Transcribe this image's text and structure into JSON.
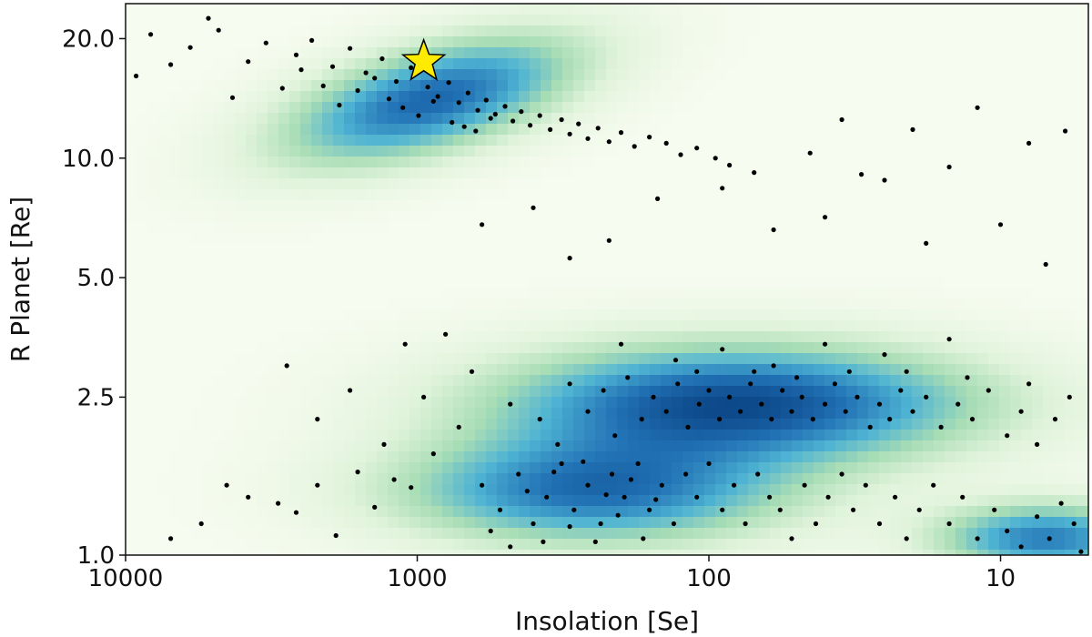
{
  "chart_data": {
    "type": "scatter",
    "title": "",
    "xlabel": "Insolation [Se]",
    "ylabel": "R Planet [Re]",
    "x_scale": "log",
    "y_scale": "log",
    "x_reversed": true,
    "xlim": [
      10000,
      5
    ],
    "ylim": [
      1.0,
      24.5
    ],
    "grid": false,
    "legend": "none",
    "x_ticks": [
      {
        "value": 10000,
        "label": "10000"
      },
      {
        "value": 1000,
        "label": "1000"
      },
      {
        "value": 100,
        "label": "100"
      },
      {
        "value": 10,
        "label": "10"
      }
    ],
    "y_ticks": [
      {
        "value": 1.0,
        "label": "1.0"
      },
      {
        "value": 2.5,
        "label": "2.5"
      },
      {
        "value": 5.0,
        "label": "5.0"
      },
      {
        "value": 10.0,
        "label": "10.0"
      },
      {
        "value": 20.0,
        "label": "20.0"
      }
    ],
    "background_density": {
      "colormap": "GnBu",
      "clusters": [
        {
          "insolation_center": 900,
          "radius_center": 14,
          "insolation_spread_dex": 0.34,
          "radius_spread_dex": 0.09,
          "tilt": -0.18,
          "strength": 0.85
        },
        {
          "insolation_center": 80,
          "radius_center": 2.4,
          "insolation_spread_dex": 0.55,
          "radius_spread_dex": 0.1,
          "tilt": 0.0,
          "strength": 1.0
        },
        {
          "insolation_center": 250,
          "radius_center": 1.45,
          "insolation_spread_dex": 0.45,
          "radius_spread_dex": 0.09,
          "tilt": 0.0,
          "strength": 0.8
        },
        {
          "insolation_center": 7,
          "radius_center": 1.1,
          "insolation_spread_dex": 0.25,
          "radius_spread_dex": 0.06,
          "tilt": 0.0,
          "strength": 0.75
        }
      ]
    },
    "series": [
      {
        "marker": "dot",
        "color": "#000000",
        "points": [
          [
            5200,
            22.5
          ],
          [
            4800,
            21.0
          ],
          [
            3300,
            19.5
          ],
          [
            2600,
            18.2
          ],
          [
            2300,
            19.8
          ],
          [
            1950,
            17.0
          ],
          [
            1700,
            18.9
          ],
          [
            1500,
            16.4
          ],
          [
            1320,
            17.8
          ],
          [
            1180,
            15.6
          ],
          [
            1050,
            16.9
          ],
          [
            920,
            15.1
          ],
          [
            850,
            14.3
          ],
          [
            780,
            15.5
          ],
          [
            720,
            13.8
          ],
          [
            670,
            14.6
          ],
          [
            620,
            13.2
          ],
          [
            580,
            14.0
          ],
          [
            540,
            12.9
          ],
          [
            500,
            13.5
          ],
          [
            470,
            12.4
          ],
          [
            440,
            13.1
          ],
          [
            410,
            12.1
          ],
          [
            380,
            12.8
          ],
          [
            350,
            11.8
          ],
          [
            320,
            12.5
          ],
          [
            300,
            11.5
          ],
          [
            280,
            12.2
          ],
          [
            260,
            11.2
          ],
          [
            240,
            11.9
          ],
          [
            220,
            11.0
          ],
          [
            200,
            11.6
          ],
          [
            180,
            10.7
          ],
          [
            160,
            11.3
          ],
          [
            140,
            10.9
          ],
          [
            125,
            10.2
          ],
          [
            110,
            10.6
          ],
          [
            95,
            10.0
          ],
          [
            85,
            9.6
          ],
          [
            70,
            9.2
          ],
          [
            1600,
            14.8
          ],
          [
            1400,
            15.9
          ],
          [
            1250,
            14.1
          ],
          [
            1120,
            13.4
          ],
          [
            990,
            12.8
          ],
          [
            880,
            13.9
          ],
          [
            760,
            12.3
          ],
          [
            690,
            12.0
          ],
          [
            630,
            11.7
          ],
          [
            560,
            12.6
          ],
          [
            2100,
            15.2
          ],
          [
            1850,
            13.6
          ],
          [
            2500,
            16.7
          ],
          [
            2900,
            15.0
          ],
          [
            3800,
            17.5
          ],
          [
            6000,
            19.0
          ],
          [
            7000,
            17.2
          ],
          [
            8200,
            20.5
          ],
          [
            9200,
            16.1
          ],
          [
            4300,
            14.2
          ],
          [
            600,
            6.8
          ],
          [
            400,
            7.5
          ],
          [
            300,
            5.6
          ],
          [
            220,
            6.2
          ],
          [
            150,
            7.9
          ],
          [
            90,
            8.4
          ],
          [
            60,
            6.6
          ],
          [
            40,
            7.1
          ],
          [
            25,
            8.8
          ],
          [
            15,
            9.5
          ],
          [
            35,
            12.5
          ],
          [
            20,
            11.8
          ],
          [
            12,
            13.4
          ],
          [
            8,
            10.9
          ],
          [
            6,
            11.7
          ],
          [
            45,
            10.3
          ],
          [
            30,
            9.1
          ],
          [
            18,
            6.1
          ],
          [
            10,
            6.8
          ],
          [
            7,
            5.4
          ],
          [
            800,
            3.6
          ],
          [
            650,
            2.9
          ],
          [
            480,
            2.4
          ],
          [
            380,
            2.2
          ],
          [
            330,
            1.9
          ],
          [
            300,
            2.7
          ],
          [
            260,
            2.3
          ],
          [
            230,
            2.6
          ],
          [
            210,
            2.0
          ],
          [
            190,
            2.8
          ],
          [
            170,
            2.2
          ],
          [
            155,
            2.5
          ],
          [
            140,
            2.3
          ],
          [
            128,
            2.7
          ],
          [
            118,
            2.1
          ],
          [
            108,
            2.4
          ],
          [
            100,
            2.6
          ],
          [
            92,
            2.2
          ],
          [
            85,
            2.5
          ],
          [
            78,
            2.3
          ],
          [
            72,
            2.7
          ],
          [
            66,
            2.4
          ],
          [
            61,
            2.2
          ],
          [
            56,
            2.6
          ],
          [
            52,
            2.3
          ],
          [
            48,
            2.5
          ],
          [
            44,
            2.2
          ],
          [
            40,
            2.4
          ],
          [
            37,
            2.7
          ],
          [
            34,
            2.3
          ],
          [
            31,
            2.5
          ],
          [
            28,
            2.1
          ],
          [
            26,
            2.4
          ],
          [
            24,
            2.2
          ],
          [
            22,
            2.6
          ],
          [
            20,
            2.3
          ],
          [
            18,
            2.5
          ],
          [
            16,
            2.1
          ],
          [
            14,
            2.4
          ],
          [
            12.5,
            2.2
          ],
          [
            11,
            2.6
          ],
          [
            9.5,
            2.0
          ],
          [
            8.5,
            2.3
          ],
          [
            7.5,
            1.9
          ],
          [
            6.5,
            2.2
          ],
          [
            5.8,
            2.5
          ],
          [
            130,
            3.1
          ],
          [
            90,
            3.3
          ],
          [
            60,
            3.0
          ],
          [
            40,
            3.4
          ],
          [
            25,
            3.2
          ],
          [
            15,
            3.5
          ],
          [
            200,
            3.4
          ],
          [
            110,
            2.9
          ],
          [
            70,
            2.9
          ],
          [
            50,
            2.8
          ],
          [
            33,
            2.9
          ],
          [
            21,
            2.9
          ],
          [
            13,
            2.8
          ],
          [
            8,
            2.7
          ],
          [
            600,
            1.5
          ],
          [
            520,
            1.3
          ],
          [
            450,
            1.6
          ],
          [
            400,
            1.2
          ],
          [
            360,
            1.4
          ],
          [
            320,
            1.7
          ],
          [
            290,
            1.3
          ],
          [
            260,
            1.5
          ],
          [
            235,
            1.2
          ],
          [
            215,
            1.6
          ],
          [
            195,
            1.4
          ],
          [
            175,
            1.7
          ],
          [
            160,
            1.3
          ],
          [
            145,
            1.5
          ],
          [
            132,
            1.2
          ],
          [
            120,
            1.6
          ],
          [
            110,
            1.4
          ],
          [
            100,
            1.7
          ],
          [
            90,
            1.3
          ],
          [
            82,
            1.5
          ],
          [
            75,
            1.2
          ],
          [
            68,
            1.6
          ],
          [
            62,
            1.4
          ],
          [
            57,
            1.3
          ],
          [
            52,
            1.1
          ],
          [
            47,
            1.5
          ],
          [
            43,
            1.2
          ],
          [
            39,
            1.4
          ],
          [
            35,
            1.6
          ],
          [
            32,
            1.3
          ],
          [
            29,
            1.5
          ],
          [
            26,
            1.2
          ],
          [
            23,
            1.4
          ],
          [
            21,
            1.1
          ],
          [
            19,
            1.3
          ],
          [
            17,
            1.5
          ],
          [
            15,
            1.2
          ],
          [
            13.5,
            1.4
          ],
          [
            12,
            1.1
          ],
          [
            10.5,
            1.3
          ],
          [
            9.5,
            1.15
          ],
          [
            8.5,
            1.05
          ],
          [
            7.5,
            1.25
          ],
          [
            6.8,
            1.1
          ],
          [
            6.2,
            1.35
          ],
          [
            5.6,
            1.2
          ],
          [
            5.3,
            1.02
          ],
          [
            560,
            1.15
          ],
          [
            480,
            1.05
          ],
          [
            420,
            1.45
          ],
          [
            370,
            1.08
          ],
          [
            340,
            1.62
          ],
          [
            300,
            1.18
          ],
          [
            270,
            1.72
          ],
          [
            245,
            1.08
          ],
          [
            225,
            1.42
          ],
          [
            205,
            1.26
          ],
          [
            185,
            1.55
          ],
          [
            168,
            1.1
          ],
          [
            152,
            1.38
          ],
          [
            4500,
            1.5
          ],
          [
            3800,
            1.4
          ],
          [
            3000,
            1.35
          ],
          [
            2600,
            1.28
          ],
          [
            2200,
            1.5
          ],
          [
            1900,
            1.12
          ],
          [
            1600,
            1.62
          ],
          [
            1400,
            1.32
          ],
          [
            1200,
            1.55
          ],
          [
            1050,
            1.48
          ],
          [
            2800,
            3.0
          ],
          [
            2200,
            2.2
          ],
          [
            1700,
            2.6
          ],
          [
            1300,
            1.9
          ],
          [
            1100,
            3.4
          ],
          [
            950,
            2.5
          ],
          [
            720,
            2.1
          ],
          [
            880,
            1.8
          ],
          [
            5500,
            1.2
          ],
          [
            7000,
            1.1
          ]
        ]
      }
    ],
    "highlight": {
      "marker": "star",
      "color": "#ffeb00",
      "edge_color": "#000000",
      "insolation": 950,
      "radius": 17.5
    }
  }
}
